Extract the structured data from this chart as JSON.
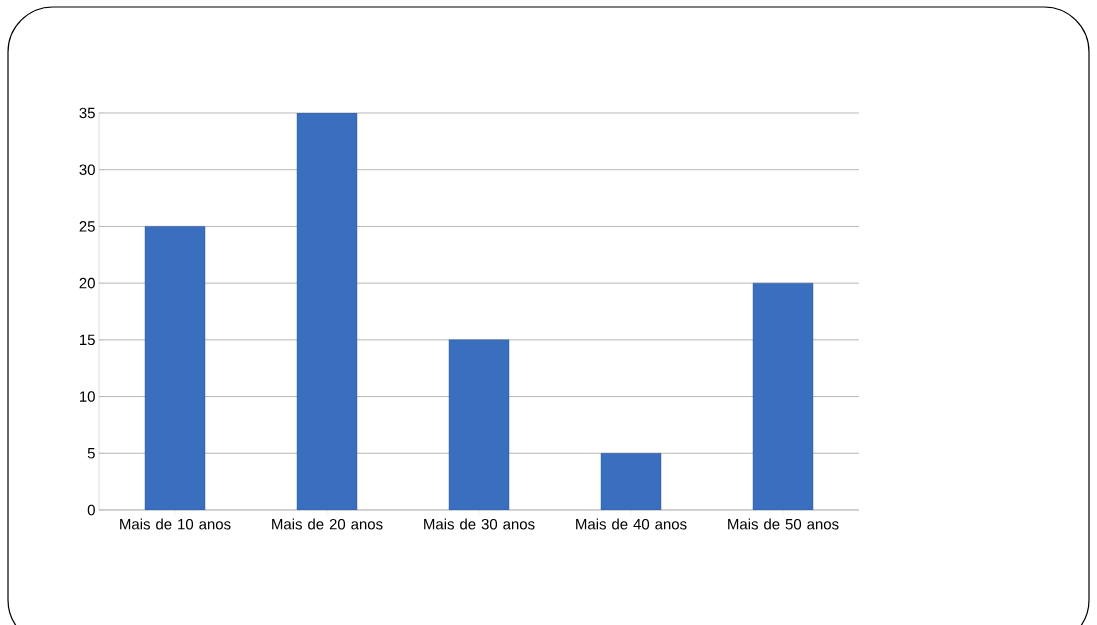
{
  "chart_data": {
    "type": "bar",
    "categories": [
      "Mais de 10 anos",
      "Mais de 20 anos",
      "Mais de 30 anos",
      "Mais de 40 anos",
      "Mais de 50 anos"
    ],
    "values": [
      25,
      35,
      15,
      5,
      20
    ],
    "color": "#3a6fc0",
    "ylim": [
      0,
      35
    ],
    "yticks": [
      0,
      5,
      10,
      15,
      20,
      25,
      30,
      35
    ],
    "grid": "y"
  }
}
